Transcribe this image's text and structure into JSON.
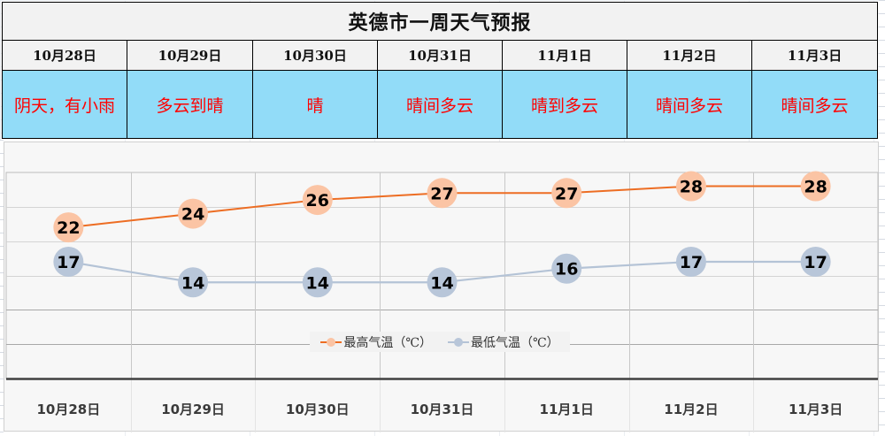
{
  "title": "英德市一周天气预报",
  "days": [
    {
      "date": "10月28日",
      "weather": "阴天，有小雨",
      "high": 22,
      "low": 17
    },
    {
      "date": "10月29日",
      "weather": "多云到晴",
      "high": 24,
      "low": 14
    },
    {
      "date": "10月30日",
      "weather": "晴",
      "high": 26,
      "low": 14
    },
    {
      "date": "10月31日",
      "weather": "晴间多云",
      "high": 27,
      "low": 14
    },
    {
      "date": "11月1日",
      "weather": "晴到多云",
      "high": 27,
      "low": 16
    },
    {
      "date": "11月2日",
      "weather": "晴间多云",
      "high": 28,
      "low": 17
    },
    {
      "date": "11月3日",
      "weather": "晴间多云",
      "high": 28,
      "low": 17
    }
  ],
  "colors": {
    "header_bg": "#f2f2f2",
    "weather_bg": "#92dcf8",
    "weather_text": "#ff0000",
    "high_line": "#ed6d23",
    "high_marker": "#fbc4a4",
    "low_line": "#b4c3d6",
    "low_marker": "#b8c6d9"
  },
  "legend": {
    "high_label": "最高气温（℃）",
    "low_label": "最低气温（℃）"
  },
  "chart_data": {
    "type": "line",
    "title": "",
    "categories": [
      "10月28日",
      "10月29日",
      "10月30日",
      "10月31日",
      "11月1日",
      "11月2日",
      "11月3日"
    ],
    "series": [
      {
        "name": "最高气温（℃）",
        "values": [
          22,
          24,
          26,
          27,
          27,
          28,
          28
        ],
        "color": "#ed6d23"
      },
      {
        "name": "最低气温（℃）",
        "values": [
          17,
          14,
          14,
          14,
          16,
          17,
          17
        ],
        "color": "#b4c3d6"
      }
    ],
    "xlabel": "",
    "ylabel": "",
    "ylim": [
      0,
      30
    ],
    "y_axis_visible": false,
    "grid": true,
    "data_labels": true,
    "legend_position": "inside-bottom-center"
  }
}
